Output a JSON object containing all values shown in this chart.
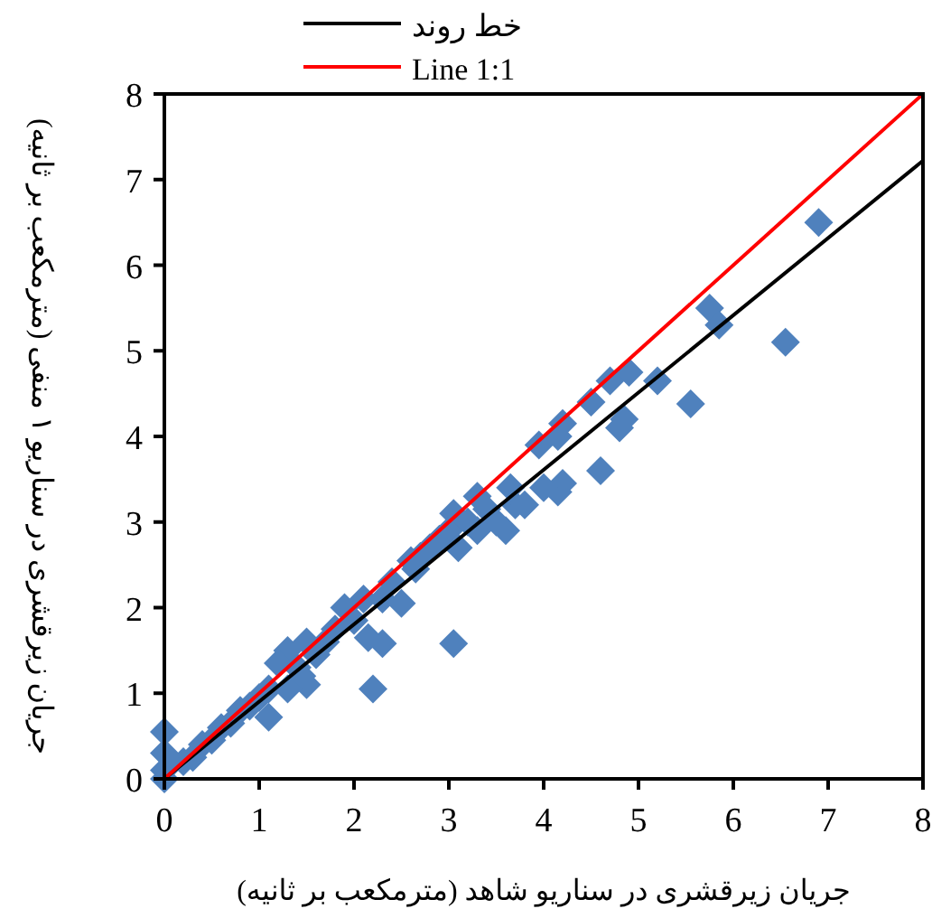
{
  "chart_data": {
    "type": "scatter",
    "xlabel": "جریان زیرقشری در سناریو شاهد (مترمکعب بر ثانیه)",
    "ylabel": "جریان زیرقشری در سناریو ۱ منفی (مترمکعب بر ثانیه)",
    "xlim": [
      0,
      8
    ],
    "ylim": [
      0,
      8
    ],
    "xticks": [
      0,
      1,
      2,
      3,
      4,
      5,
      6,
      7,
      8
    ],
    "yticks": [
      0,
      1,
      2,
      3,
      4,
      5,
      6,
      7,
      8
    ],
    "grid": false,
    "legend": "top",
    "series": [
      {
        "color": "#4f81bd",
        "marker": "diamond",
        "x": [
          6.9,
          5.75,
          5.85,
          6.55,
          5.55,
          5.2,
          4.9,
          4.7,
          4.5,
          4.85,
          4.8,
          4.6,
          4.2,
          4.15,
          4.0,
          3.95,
          4.15,
          4.2,
          3.05,
          2.2,
          2.3,
          2.15,
          1.5,
          1.1,
          3.5,
          3.6,
          3.7,
          3.05,
          3.0,
          2.8,
          2.6,
          2.3,
          2.5,
          1.9,
          2.1,
          1.5,
          1.3,
          1.2,
          1.0,
          0.8,
          0.6,
          0.4,
          0.2,
          0,
          0,
          0,
          0,
          0.3,
          0.5,
          0.7,
          0.9,
          1.1,
          1.4,
          1.7,
          1.8,
          2.7,
          3.2,
          3.4,
          3.3,
          2.9,
          3.65,
          2.0,
          1.6,
          1.45,
          2.4,
          2.65,
          3.1,
          3.3,
          3.8,
          1.3
        ],
        "values": [
          6.5,
          5.5,
          5.3,
          5.1,
          4.38,
          4.65,
          4.75,
          4.65,
          4.4,
          4.2,
          4.1,
          3.6,
          3.45,
          3.35,
          3.4,
          3.9,
          4.0,
          4.15,
          1.58,
          1.05,
          1.58,
          1.65,
          1.1,
          0.72,
          3.0,
          2.9,
          3.2,
          3.1,
          2.9,
          2.7,
          2.55,
          2.1,
          2.05,
          2.0,
          2.1,
          1.6,
          1.5,
          1.35,
          0.95,
          0.8,
          0.6,
          0.4,
          0.2,
          0.55,
          0.3,
          0.1,
          0,
          0.25,
          0.45,
          0.65,
          0.85,
          1.05,
          1.3,
          1.6,
          1.75,
          2.6,
          3.0,
          3.15,
          3.3,
          2.8,
          3.4,
          1.85,
          1.45,
          1.2,
          2.3,
          2.45,
          2.7,
          2.9,
          3.2,
          1.05
        ]
      },
      {
        "type": "line",
        "name": "خط روند",
        "color": "#000000",
        "marker": "none",
        "x": [
          0,
          8
        ],
        "values": [
          0,
          7.22
        ]
      },
      {
        "type": "line",
        "name": "Line 1:1",
        "color": "#ff0000",
        "marker": "none",
        "x": [
          0,
          8
        ],
        "values": [
          0,
          8
        ]
      }
    ]
  }
}
